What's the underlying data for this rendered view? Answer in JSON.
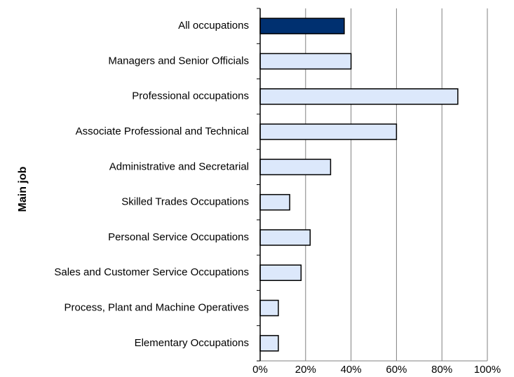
{
  "chart_data": {
    "type": "hbar",
    "y_label": "Main job",
    "categories": [
      "All occupations",
      "Managers and Senior Officials",
      "Professional occupations",
      "Associate Professional and Technical",
      "Administrative and Secretarial",
      "Skilled Trades Occupations",
      "Personal Service Occupations",
      "Sales and Customer Service Occupations",
      "Process, Plant and Machine Operatives",
      "Elementary Occupations"
    ],
    "values": [
      37,
      40,
      87,
      60,
      31,
      13,
      22,
      18,
      8,
      8
    ],
    "colors": [
      "#003070",
      "#dce8fb",
      "#dce8fb",
      "#dce8fb",
      "#dce8fb",
      "#dce8fb",
      "#dce8fb",
      "#dce8fb",
      "#dce8fb",
      "#dce8fb"
    ],
    "xlim": [
      0,
      100
    ],
    "xticks": [
      {
        "value": 0,
        "label": "0%"
      },
      {
        "value": 20,
        "label": "20%"
      },
      {
        "value": 40,
        "label": "40%"
      },
      {
        "value": 60,
        "label": "60%"
      },
      {
        "value": 80,
        "label": "80%"
      },
      {
        "value": 100,
        "label": "100%"
      }
    ],
    "grid": true
  }
}
